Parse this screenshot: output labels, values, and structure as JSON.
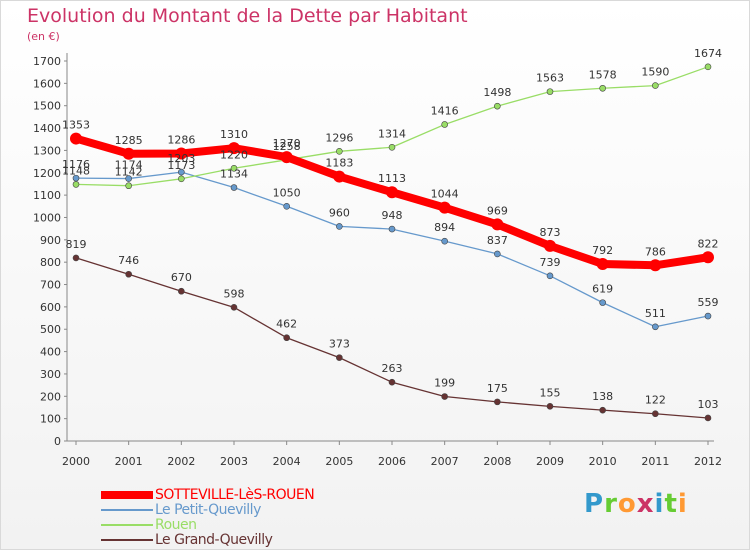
{
  "header": {
    "title": "Evolution du Montant de la Dette par Habitant",
    "unit": "(en €)"
  },
  "brand": {
    "text": "Proxiti",
    "letters": [
      {
        "ch": "P",
        "color": "#3399cc"
      },
      {
        "ch": "r",
        "color": "#66cc33"
      },
      {
        "ch": "o",
        "color": "#ff9933"
      },
      {
        "ch": "x",
        "color": "#cc3366"
      },
      {
        "ch": "i",
        "color": "#3399cc"
      },
      {
        "ch": "t",
        "color": "#66cc33"
      },
      {
        "ch": "i",
        "color": "#ff9933"
      }
    ]
  },
  "chart_data": {
    "type": "line",
    "title": "Evolution du Montant de la Dette par Habitant",
    "ylabel": "(en €)",
    "xlabel": "",
    "x": [
      "2000",
      "2001",
      "2002",
      "2003",
      "2004",
      "2005",
      "2006",
      "2007",
      "2008",
      "2009",
      "2010",
      "2011",
      "2012"
    ],
    "ylim": [
      0,
      1700
    ],
    "yticks": [
      0,
      100,
      200,
      300,
      400,
      500,
      600,
      700,
      800,
      900,
      1000,
      1100,
      1200,
      1300,
      1400,
      1500,
      1600,
      1700
    ],
    "grid": false,
    "legend_position": "bottom-left",
    "series": [
      {
        "name": "SOTTEVILLE-LèS-ROUEN",
        "color": "#ff0000",
        "values": [
          1353,
          1285,
          1286,
          1310,
          1270,
          1183,
          1113,
          1044,
          969,
          873,
          792,
          786,
          822
        ]
      },
      {
        "name": "Le Petit-Quevilly",
        "color": "#6699cc",
        "values": [
          1176,
          1174,
          1203,
          1134,
          1050,
          960,
          948,
          894,
          837,
          739,
          619,
          511,
          559
        ]
      },
      {
        "name": "Rouen",
        "color": "#99dd66",
        "values": [
          1148,
          1142,
          1173,
          1220,
          1258,
          1296,
          1314,
          1416,
          1498,
          1563,
          1578,
          1590,
          1674
        ]
      },
      {
        "name": "Le Grand-Quevilly",
        "color": "#663333",
        "values": [
          819,
          746,
          670,
          598,
          462,
          373,
          263,
          199,
          175,
          155,
          138,
          122,
          103
        ]
      }
    ]
  }
}
